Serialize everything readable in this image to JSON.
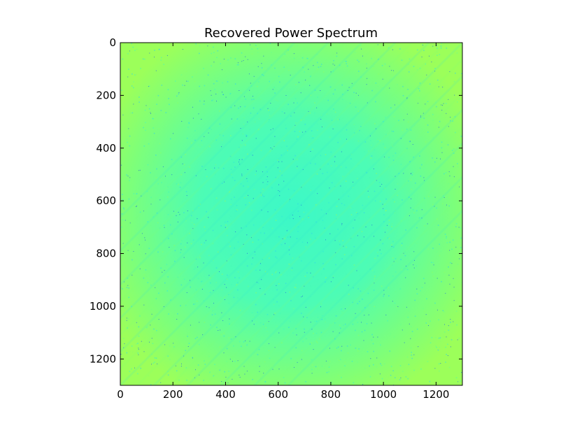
{
  "chart_data": {
    "type": "heatmap",
    "title": "Recovered Power Spectrum",
    "xlabel": "",
    "ylabel": "",
    "xlim": [
      0,
      1300
    ],
    "ylim": [
      1300,
      0
    ],
    "xticks": [
      0,
      200,
      400,
      600,
      800,
      1000,
      1200
    ],
    "yticks": [
      0,
      200,
      400,
      600,
      800,
      1000,
      1200
    ],
    "xtick_labels": [
      "0",
      "200",
      "400",
      "600",
      "800",
      "1000",
      "1200"
    ],
    "ytick_labels": [
      "0",
      "200",
      "400",
      "600",
      "800",
      "1000",
      "1200"
    ],
    "grid": false,
    "colormap": "jet",
    "colors": {
      "edge_high": "#9cff5a",
      "mid": "#5cffa0",
      "center_low": "#3cf8c8",
      "speckle": "#1f6fd9",
      "axes": "#000000",
      "background": "#ffffff"
    }
  }
}
